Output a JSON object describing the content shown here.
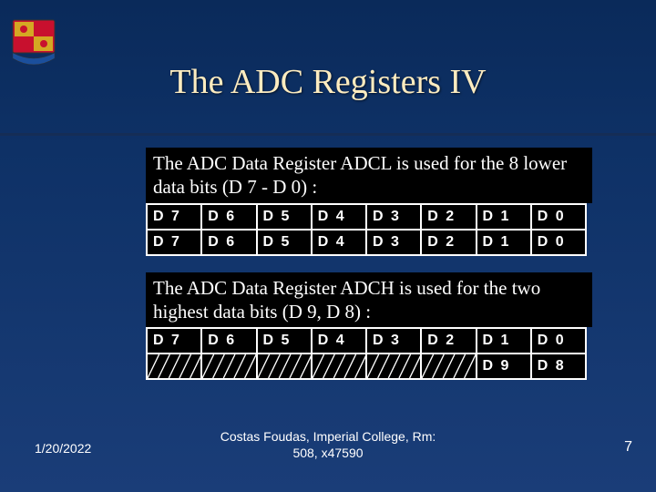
{
  "slide": {
    "title": "The ADC Registers IV",
    "date": "1/20/2022",
    "footer_affiliation_line1": "Costas Foudas, Imperial College, Rm:",
    "footer_affiliation_line2": "508, x47590",
    "page_number": "7"
  },
  "adcl": {
    "description": "The ADC Data Register ADCL is used for the 8 lower data bits (D 7 - D 0) :",
    "row1": [
      "D 7",
      "D 6",
      "D 5",
      "D 4",
      "D 3",
      "D 2",
      "D 1",
      "D 0"
    ],
    "row2": [
      "D 7",
      "D 6",
      "D 5",
      "D 4",
      "D 3",
      "D 2",
      "D 1",
      "D 0"
    ]
  },
  "adch": {
    "description": "The ADC Data Register ADCH is used for the two highest data bits (D 9, D 8) :",
    "row1": [
      "D 7",
      "D 6",
      "D 5",
      "D 4",
      "D 3",
      "D 2",
      "D 1",
      "D 0"
    ],
    "row2": [
      "",
      "",
      "",
      "",
      "",
      "",
      "D 9",
      "D 8"
    ],
    "row2_hatched": [
      true,
      true,
      true,
      true,
      true,
      true,
      false,
      false
    ]
  },
  "colors": {
    "title_color": "#fdecc0",
    "cell_text_color": "#ffffff",
    "cell_border_color": "#ffffff",
    "cell_bg_color": "#000000",
    "hatch_color": "#ffffff",
    "crest_red": "#c8102e",
    "crest_gold": "#d4a723",
    "crest_blue": "#1b4f9c"
  },
  "typography": {
    "title_fontsize": 38,
    "desc_fontsize": 21,
    "cell_fontsize": 16,
    "footer_fontsize": 14
  }
}
